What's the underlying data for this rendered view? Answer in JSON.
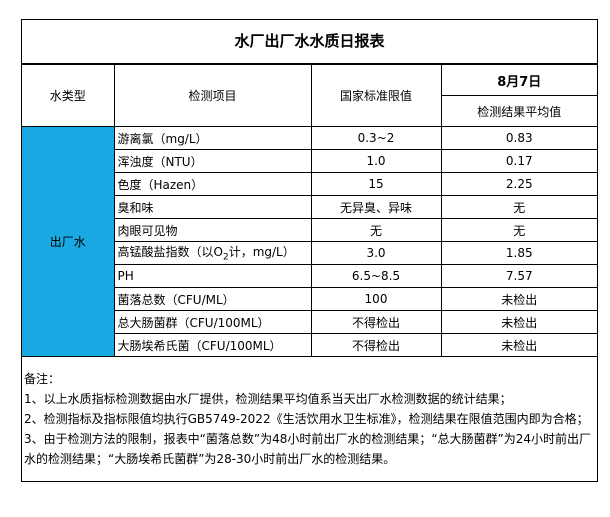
{
  "title": "水厂出厂水水质日报表",
  "header": {
    "water_type": "水类型",
    "item": "检测项目",
    "standard": "国家标准限值",
    "date": "8月7日",
    "result": "检测结果平均值"
  },
  "water_type_value": "出厂水",
  "colors": {
    "water_type_cell": "#1ba9e3"
  },
  "rows": [
    {
      "item": "游离氯（mg/L）",
      "standard": "0.3~2",
      "result": "0.83"
    },
    {
      "item": "浑浊度（NTU）",
      "standard": "1.0",
      "result": "0.17"
    },
    {
      "item": "色度（Hazen）",
      "standard": "15",
      "result": "2.25"
    },
    {
      "item": "臭和味",
      "standard": "无异臭、异味",
      "result": "无"
    },
    {
      "item": "肉眼可见物",
      "standard": "无",
      "result": "无"
    },
    {
      "item": "高锰酸盐指数（以O2计，mg/L）",
      "standard": "3.0",
      "result": "1.85"
    },
    {
      "item": "PH",
      "standard": "6.5~8.5",
      "result": "7.57"
    },
    {
      "item": "菌落总数（CFU/ML）",
      "standard": "100",
      "result": "未检出"
    },
    {
      "item": "总大肠菌群（CFU/100ML）",
      "standard": "不得检出",
      "result": "未检出"
    },
    {
      "item": "大肠埃希氏菌（CFU/100ML）",
      "standard": "不得检出",
      "result": "未检出"
    }
  ],
  "notes": [
    "备注：",
    "1、以上水质指标检测数据由水厂提供，检测结果平均值系当天出厂水检测数据的统计结果；",
    "2、检测指标及指标限值均执行GB5749-2022《生活饮用水卫生标准》，检测结果在限值范围内即为合格；",
    "3、由于检测方法的限制，报表中“菌落总数”为48小时前出厂水的检测结果；“总大肠菌群”为24小时前出厂水的检测结果；“大肠埃希氏菌群”为28-30小时前出厂水的检测结果。"
  ]
}
